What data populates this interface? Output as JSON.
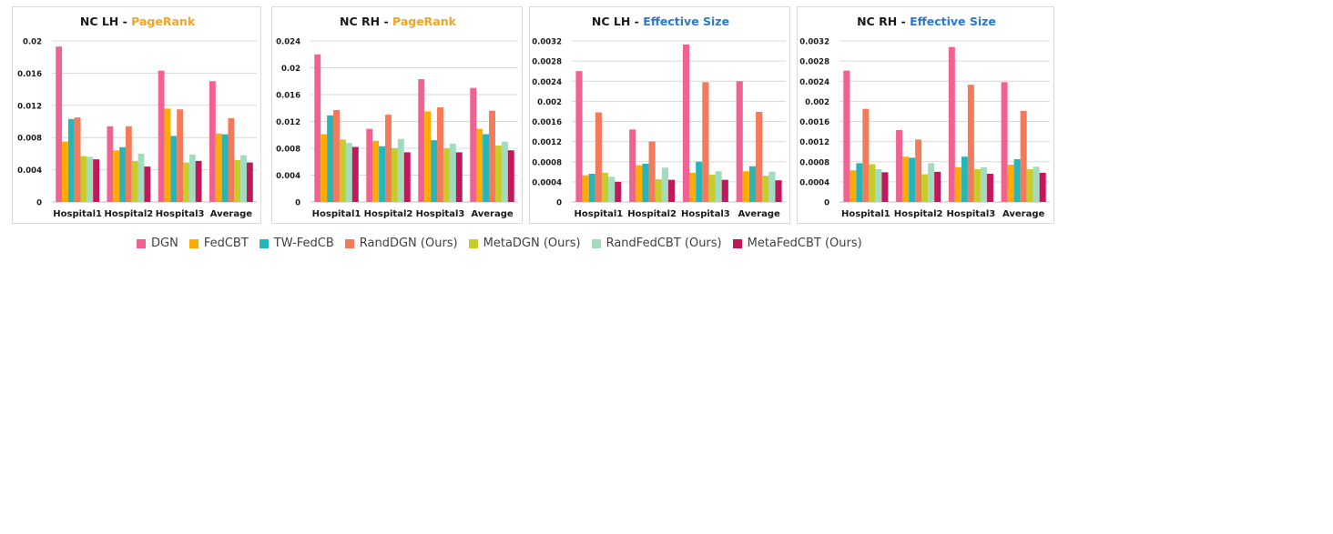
{
  "series_colors": [
    "#f06292",
    "#ffab00",
    "#26b5b8",
    "#f47a5a",
    "#c6cc29",
    "#9fdcc0",
    "#c2185b"
  ],
  "chart_data": [
    {
      "type": "bar",
      "title_prefix": "NC LH - ",
      "title_metric": "PageRank",
      "metric_color": "#f5a51f",
      "categories": [
        "Hospital1",
        "Hospital2",
        "Hospital3",
        "Average"
      ],
      "ylim": [
        0,
        0.02
      ],
      "yticks": [
        "0.02",
        "0.016",
        "0.012",
        "0.008",
        "0.004",
        "0"
      ],
      "series": [
        {
          "name": "DGN",
          "values": [
            0.0193,
            0.0094,
            0.0163,
            0.015
          ]
        },
        {
          "name": "FedCBT",
          "values": [
            0.0075,
            0.0064,
            0.0116,
            0.0085
          ]
        },
        {
          "name": "TW-FedCB",
          "values": [
            0.0103,
            0.0068,
            0.0082,
            0.0084
          ]
        },
        {
          "name": "RandDGN (Ours)",
          "values": [
            0.0105,
            0.0094,
            0.0115,
            0.0104
          ]
        },
        {
          "name": "MetaDGN (Ours)",
          "values": [
            0.0057,
            0.0051,
            0.0049,
            0.0052
          ]
        },
        {
          "name": "RandFedCBT (Ours)",
          "values": [
            0.0056,
            0.006,
            0.0059,
            0.0058
          ]
        },
        {
          "name": "MetaFedCBT (Ours)",
          "values": [
            0.0053,
            0.0044,
            0.0051,
            0.0049
          ]
        }
      ]
    },
    {
      "type": "bar",
      "title_prefix": "NC RH - ",
      "title_metric": "PageRank",
      "metric_color": "#f5a51f",
      "categories": [
        "Hospital1",
        "Hospital2",
        "Hospital3",
        "Average"
      ],
      "ylim": [
        0,
        0.024
      ],
      "yticks": [
        "0.024",
        "0.02",
        "0.016",
        "0.012",
        "0.008",
        "0.004",
        "0"
      ],
      "series": [
        {
          "name": "DGN",
          "values": [
            0.022,
            0.0109,
            0.0183,
            0.017
          ]
        },
        {
          "name": "FedCBT",
          "values": [
            0.0101,
            0.0091,
            0.0135,
            0.0109
          ]
        },
        {
          "name": "TW-FedCB",
          "values": [
            0.0129,
            0.0083,
            0.0092,
            0.0101
          ]
        },
        {
          "name": "RandDGN (Ours)",
          "values": [
            0.0137,
            0.013,
            0.0141,
            0.0136
          ]
        },
        {
          "name": "MetaDGN (Ours)",
          "values": [
            0.0093,
            0.008,
            0.008,
            0.0084
          ]
        },
        {
          "name": "RandFedCBT (Ours)",
          "values": [
            0.0088,
            0.0094,
            0.0087,
            0.009
          ]
        },
        {
          "name": "MetaFedCBT (Ours)",
          "values": [
            0.0082,
            0.0074,
            0.0074,
            0.0077
          ]
        }
      ]
    },
    {
      "type": "bar",
      "title_prefix": "NC LH - ",
      "title_metric": "Effective Size",
      "metric_color": "#2878d6",
      "categories": [
        "Hospital1",
        "Hospital2",
        "Hospital3",
        "Average"
      ],
      "ylim": [
        0,
        0.0032
      ],
      "yticks": [
        "0.0032",
        "0.0028",
        "0.0024",
        "0.002",
        "0.0016",
        "0.0012",
        "0.0008",
        "0.0004",
        "0"
      ],
      "series": [
        {
          "name": "DGN",
          "values": [
            0.0026,
            0.00144,
            0.00313,
            0.0024
          ]
        },
        {
          "name": "FedCBT",
          "values": [
            0.00053,
            0.00073,
            0.00058,
            0.00061
          ]
        },
        {
          "name": "TW-FedCB",
          "values": [
            0.00056,
            0.00076,
            0.0008,
            0.00071
          ]
        },
        {
          "name": "RandDGN (Ours)",
          "values": [
            0.00178,
            0.0012,
            0.00238,
            0.00179
          ]
        },
        {
          "name": "MetaDGN (Ours)",
          "values": [
            0.00058,
            0.00045,
            0.00054,
            0.00052
          ]
        },
        {
          "name": "RandFedCBT (Ours)",
          "values": [
            0.0005,
            0.00068,
            0.00061,
            0.0006
          ]
        },
        {
          "name": "MetaFedCBT (Ours)",
          "values": [
            0.0004,
            0.00044,
            0.00044,
            0.00043
          ]
        }
      ]
    },
    {
      "type": "bar",
      "title_prefix": "NC RH - ",
      "title_metric": "Effective Size",
      "metric_color": "#2878d6",
      "categories": [
        "Hospital1",
        "Hospital2",
        "Hospital3",
        "Average"
      ],
      "ylim": [
        0,
        0.0032
      ],
      "yticks": [
        "0.0032",
        "0.0028",
        "0.0024",
        "0.002",
        "0.0016",
        "0.0012",
        "0.0008",
        "0.0004",
        "0"
      ],
      "series": [
        {
          "name": "DGN",
          "values": [
            0.00261,
            0.00143,
            0.00308,
            0.00238
          ]
        },
        {
          "name": "FedCBT",
          "values": [
            0.00063,
            0.0009,
            0.00069,
            0.00074
          ]
        },
        {
          "name": "TW-FedCB",
          "values": [
            0.00077,
            0.00088,
            0.0009,
            0.00085
          ]
        },
        {
          "name": "RandDGN (Ours)",
          "values": [
            0.00185,
            0.00124,
            0.00233,
            0.00181
          ]
        },
        {
          "name": "MetaDGN (Ours)",
          "values": [
            0.00075,
            0.00055,
            0.00065,
            0.00065
          ]
        },
        {
          "name": "RandFedCBT (Ours)",
          "values": [
            0.00065,
            0.00077,
            0.00069,
            0.0007
          ]
        },
        {
          "name": "MetaFedCBT (Ours)",
          "values": [
            0.00059,
            0.0006,
            0.00056,
            0.00058
          ]
        }
      ]
    }
  ],
  "legend": [
    {
      "label": "DGN"
    },
    {
      "label": "FedCBT"
    },
    {
      "label": "TW-FedCB"
    },
    {
      "label": "RandDGN (Ours)"
    },
    {
      "label": "MetaDGN (Ours)"
    },
    {
      "label": "RandFedCBT (Ours)"
    },
    {
      "label": "MetaFedCBT (Ours)"
    }
  ]
}
